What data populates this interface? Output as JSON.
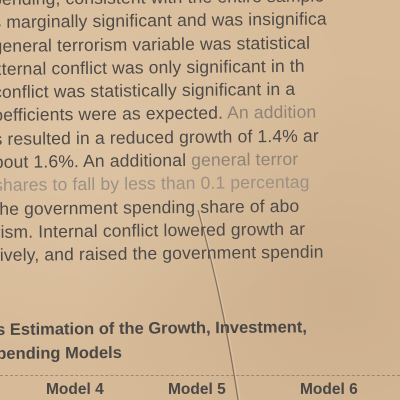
{
  "paragraph": {
    "lines": [
      {
        "a": "pending, consistent with the entire sample",
        "b": ""
      },
      {
        "a": "s marginally significant and was insignifica",
        "b": ""
      },
      {
        "a": "general terrorism variable was statistical",
        "b": ""
      },
      {
        "a": "xternal conflict was only significant in th",
        "b": ""
      },
      {
        "a": " conflict was statistically significant in a",
        "b": ""
      },
      {
        "a": "oefficients were as expected. ",
        "b": "An addition"
      },
      {
        "a": "s resulted in a reduced growth of 1.4% ar",
        "b": ""
      },
      {
        "a": "bout 1.6%. An additional ",
        "b": "general terror"
      },
      {
        "a": "",
        "b": " shares to fall by less than 0.1 percentag"
      },
      {
        "a": "the government spending share of abo",
        "b": ""
      },
      {
        "a": "rism. Internal conflict lowered growth ar",
        "b": ""
      },
      {
        "a": "tively, and raised the government spendin",
        "b": ""
      }
    ]
  },
  "table": {
    "title_line1": "s Estimation of the Growth, Investment,",
    "title_line2": "pending Models",
    "headers": [
      "Model 4",
      "Model 5",
      "Model 6"
    ]
  },
  "colors": {
    "paper": "#d7bb99",
    "ink": "#4e4a47",
    "faded_ink": "#8e8276"
  }
}
